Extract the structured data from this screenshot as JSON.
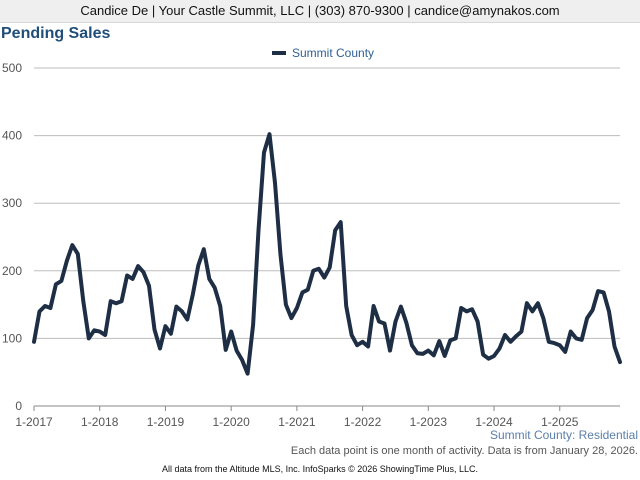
{
  "header": {
    "contact_line": "Candice De | Your Castle Summit, LLC | (303) 870-9300 | candice@amynakos.com"
  },
  "chart_data": {
    "type": "line",
    "title": "Pending Sales",
    "xlabel": "",
    "ylabel": "",
    "ylim": [
      0,
      500
    ],
    "yticks": [
      0,
      100,
      200,
      300,
      400,
      500
    ],
    "xticks": [
      "1-2017",
      "1-2018",
      "1-2019",
      "1-2020",
      "1-2021",
      "1-2022",
      "1-2023",
      "1-2024",
      "1-2025"
    ],
    "grid": true,
    "legend_position": "top-center",
    "start_month": "2017-01",
    "series": [
      {
        "name": "Summit County",
        "color": "#1e2f45",
        "values": [
          95,
          140,
          148,
          145,
          180,
          185,
          215,
          238,
          225,
          155,
          100,
          112,
          110,
          105,
          155,
          152,
          155,
          193,
          188,
          207,
          198,
          178,
          113,
          85,
          118,
          107,
          147,
          140,
          128,
          165,
          208,
          232,
          188,
          175,
          148,
          83,
          110,
          82,
          68,
          48,
          120,
          260,
          375,
          402,
          330,
          225,
          150,
          130,
          145,
          168,
          172,
          200,
          203,
          190,
          205,
          260,
          272,
          148,
          105,
          90,
          95,
          88,
          148,
          125,
          122,
          82,
          125,
          147,
          123,
          90,
          78,
          77,
          82,
          75,
          96,
          74,
          97,
          100,
          145,
          140,
          143,
          125,
          76,
          70,
          74,
          85,
          105,
          95,
          103,
          110,
          152,
          140,
          152,
          130,
          95,
          93,
          90,
          80,
          110,
          100,
          98,
          130,
          142,
          170,
          168,
          140,
          88,
          65
        ]
      }
    ]
  },
  "footer": {
    "region": "Summit County: Residential",
    "note": "Each data point is one month of activity. Data is from January 28, 2026.",
    "source": "All data from the Altitude MLS, Inc. InfoSparks © 2026 ShowingTime Plus, LLC."
  }
}
